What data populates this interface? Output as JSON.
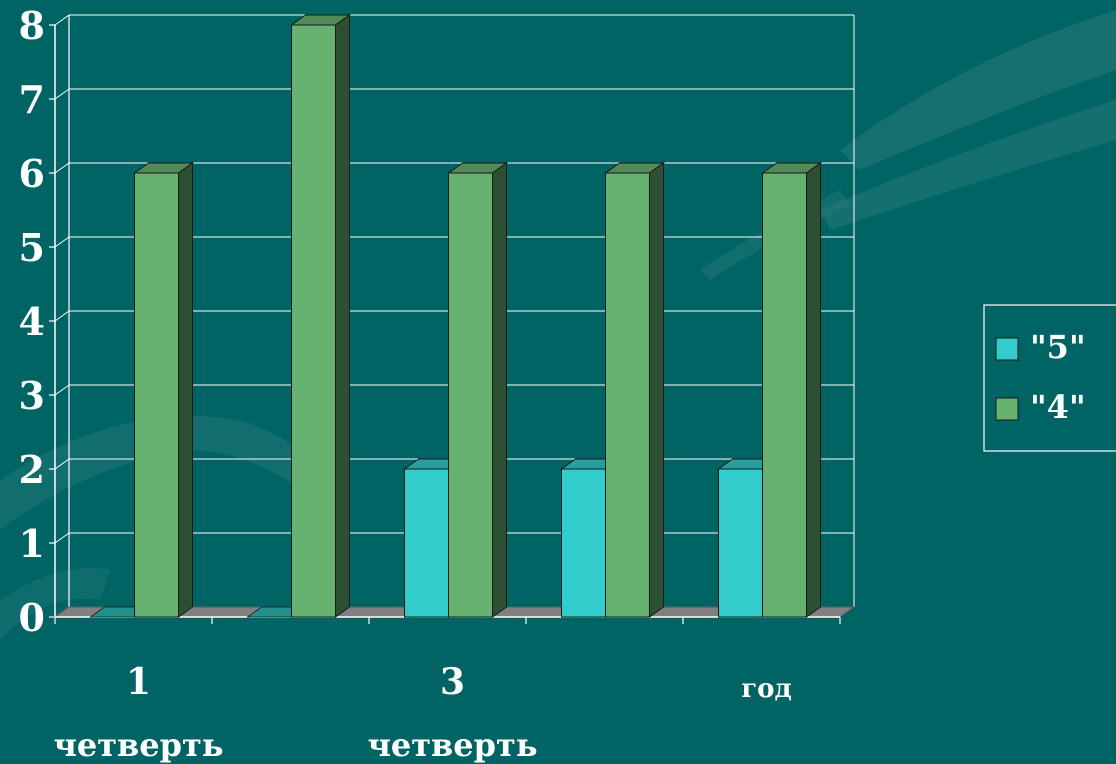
{
  "chart_data": {
    "type": "bar",
    "style": "3d-clustered-column",
    "categories": [
      {
        "line1": "1",
        "line2": "четверть"
      },
      {
        "line1": "",
        "line2": ""
      },
      {
        "line1": "3",
        "line2": "четверть"
      },
      {
        "line1": "",
        "line2": ""
      },
      {
        "line1": "год",
        "line2": ""
      }
    ],
    "series": [
      {
        "name": "\"5\"",
        "values": [
          0,
          0,
          2,
          2,
          2
        ],
        "color": "#33CCCC"
      },
      {
        "name": "\"4\"",
        "values": [
          6,
          8,
          6,
          6,
          6
        ],
        "color": "#66B270"
      }
    ],
    "y_ticks": [
      "0",
      "1",
      "2",
      "3",
      "4",
      "5",
      "6",
      "7",
      "8"
    ],
    "ylim": [
      0,
      8
    ],
    "grid": true,
    "legend": "right"
  },
  "colors": {
    "background": "#006464",
    "floor": "#808080",
    "grid": "#FFFFFF",
    "text": "#FFFFFF"
  }
}
